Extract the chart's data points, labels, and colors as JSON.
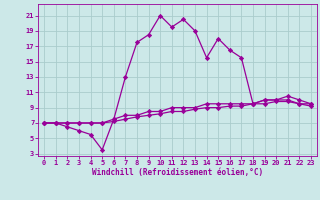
{
  "xlabel": "Windchill (Refroidissement éolien,°C)",
  "background_color": "#cce8e8",
  "grid_color": "#aacccc",
  "line_color": "#990099",
  "ylim": [
    3,
    22
  ],
  "xlim": [
    -0.5,
    23.5
  ],
  "yticks": [
    3,
    5,
    7,
    9,
    11,
    13,
    15,
    17,
    19,
    21
  ],
  "xticks": [
    0,
    1,
    2,
    3,
    4,
    5,
    6,
    7,
    8,
    9,
    10,
    11,
    12,
    13,
    14,
    15,
    16,
    17,
    18,
    19,
    20,
    21,
    22,
    23
  ],
  "series1_x": [
    0,
    1,
    2,
    3,
    4,
    5,
    6,
    7,
    8,
    9,
    10,
    11,
    12,
    13,
    14,
    15,
    16,
    17,
    18,
    19,
    20,
    21,
    22,
    23
  ],
  "series1_y": [
    7,
    7,
    6.5,
    6,
    5.5,
    3.5,
    7.5,
    13,
    17.5,
    18.5,
    21,
    19.5,
    20.5,
    19,
    15.5,
    18,
    16.5,
    15.5,
    9.5,
    10,
    10,
    10,
    9.5,
    9.5
  ],
  "series2_x": [
    0,
    1,
    2,
    3,
    4,
    5,
    6,
    7,
    8,
    9,
    10,
    11,
    12,
    13,
    14,
    15,
    16,
    17,
    18,
    19,
    20,
    21,
    22,
    23
  ],
  "series2_y": [
    7,
    7,
    7,
    7,
    7,
    7,
    7.5,
    8,
    8,
    8.5,
    8.5,
    9,
    9,
    9,
    9.5,
    9.5,
    9.5,
    9.5,
    9.5,
    10,
    10,
    10.5,
    10,
    9.5
  ],
  "series3_x": [
    0,
    1,
    2,
    3,
    4,
    5,
    6,
    7,
    8,
    9,
    10,
    11,
    12,
    13,
    14,
    15,
    16,
    17,
    18,
    19,
    20,
    21,
    22,
    23
  ],
  "series3_y": [
    7,
    7,
    7,
    7,
    7,
    7,
    7.2,
    7.5,
    7.8,
    8,
    8.2,
    8.5,
    8.5,
    8.8,
    9,
    9,
    9.2,
    9.2,
    9.5,
    9.5,
    9.8,
    9.8,
    9.5,
    9.2
  ],
  "marker": "D",
  "marker_size": 2.2,
  "line_width": 0.9,
  "tick_fontsize": 5,
  "xlabel_fontsize": 5.5
}
